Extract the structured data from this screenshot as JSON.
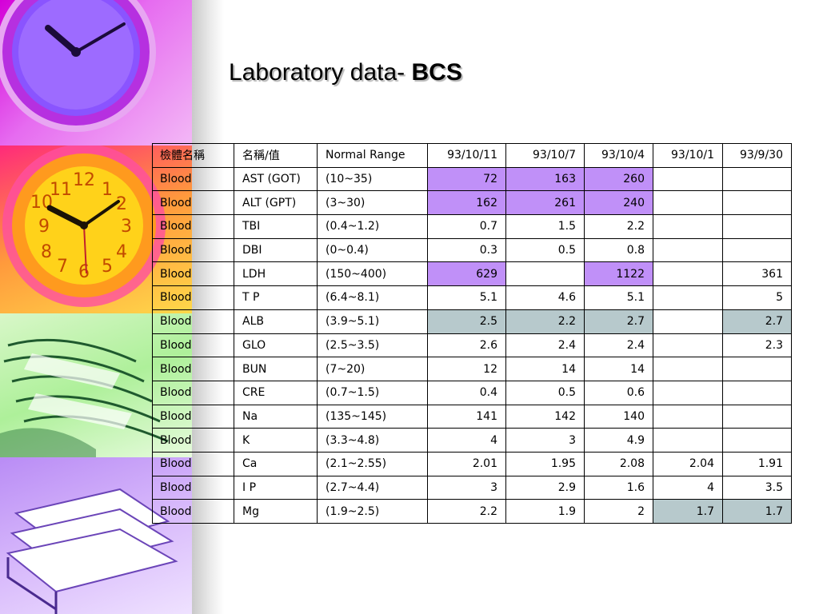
{
  "slide": {
    "title_prefix": "Laboratory data- ",
    "title_bold": "BCS"
  },
  "table": {
    "headers": [
      "檢體名稱",
      "名稱/值",
      "Normal Range",
      "93/10/11",
      "93/10/7",
      "93/10/4",
      "93/10/1",
      "93/9/30"
    ],
    "rows": [
      {
        "specimen": "Blood",
        "name": "AST (GOT)",
        "range": "(10~35)",
        "values": [
          "72",
          "163",
          "260",
          "",
          ""
        ],
        "flags": [
          "hi",
          "hi",
          "hi",
          "",
          ""
        ]
      },
      {
        "specimen": "Blood",
        "name": "ALT (GPT)",
        "range": "(3~30)",
        "values": [
          "162",
          "261",
          "240",
          "",
          ""
        ],
        "flags": [
          "hi",
          "hi",
          "hi",
          "",
          ""
        ]
      },
      {
        "specimen": "Blood",
        "name": "TBI",
        "range": "(0.4~1.2)",
        "values": [
          "0.7",
          "1.5",
          "2.2",
          "",
          ""
        ],
        "flags": [
          "",
          "",
          "",
          "",
          ""
        ]
      },
      {
        "specimen": "Blood",
        "name": "DBI",
        "range": "(0~0.4)",
        "values": [
          "0.3",
          "0.5",
          "0.8",
          "",
          ""
        ],
        "flags": [
          "",
          "",
          "",
          "",
          ""
        ]
      },
      {
        "specimen": "Blood",
        "name": "LDH",
        "range": "(150~400)",
        "values": [
          "629",
          "",
          "1122",
          "",
          "361"
        ],
        "flags": [
          "hi",
          "",
          "hi",
          "",
          ""
        ]
      },
      {
        "specimen": "Blood",
        "name": "T P",
        "range": "(6.4~8.1)",
        "values": [
          "5.1",
          "4.6",
          "5.1",
          "",
          "5"
        ],
        "flags": [
          "",
          "",
          "",
          "",
          ""
        ]
      },
      {
        "specimen": "Blood",
        "name": "ALB",
        "range": "(3.9~5.1)",
        "values": [
          "2.5",
          "2.2",
          "2.7",
          "",
          "2.7"
        ],
        "flags": [
          "lo",
          "lo",
          "lo",
          "",
          "lo"
        ]
      },
      {
        "specimen": "Blood",
        "name": "GLO",
        "range": "(2.5~3.5)",
        "values": [
          "2.6",
          "2.4",
          "2.4",
          "",
          "2.3"
        ],
        "flags": [
          "",
          "",
          "",
          "",
          ""
        ]
      },
      {
        "specimen": "Blood",
        "name": "BUN",
        "range": "(7~20)",
        "values": [
          "12",
          "14",
          "14",
          "",
          ""
        ],
        "flags": [
          "",
          "",
          "",
          "",
          ""
        ]
      },
      {
        "specimen": "Blood",
        "name": "CRE",
        "range": "(0.7~1.5)",
        "values": [
          "0.4",
          "0.5",
          "0.6",
          "",
          ""
        ],
        "flags": [
          "",
          "",
          "",
          "",
          ""
        ]
      },
      {
        "specimen": "Blood",
        "name": "Na",
        "range": "(135~145)",
        "values": [
          "141",
          "142",
          "140",
          "",
          ""
        ],
        "flags": [
          "",
          "",
          "",
          "",
          ""
        ]
      },
      {
        "specimen": "Blood",
        "name": "K",
        "range": "(3.3~4.8)",
        "values": [
          "4",
          "3",
          "4.9",
          "",
          ""
        ],
        "flags": [
          "",
          "",
          "",
          "",
          ""
        ]
      },
      {
        "specimen": "Blood",
        "name": "Ca",
        "range": "(2.1~2.55)",
        "values": [
          "2.01",
          "1.95",
          "2.08",
          "2.04",
          "1.91"
        ],
        "flags": [
          "",
          "",
          "",
          "",
          ""
        ]
      },
      {
        "specimen": "Blood",
        "name": "I P",
        "range": "(2.7~4.4)",
        "values": [
          "3",
          "2.9",
          "1.6",
          "4",
          "3.5"
        ],
        "flags": [
          "",
          "",
          "",
          "",
          ""
        ]
      },
      {
        "specimen": "Blood",
        "name": "Mg",
        "range": "(1.9~2.5)",
        "values": [
          "2.2",
          "1.9",
          "2",
          "1.7",
          "1.7"
        ],
        "flags": [
          "",
          "",
          "",
          "lo",
          "lo"
        ]
      }
    ]
  },
  "colors": {
    "high_highlight": "#c090f8",
    "low_highlight": "#b7c9cc"
  },
  "decor": {
    "icons": [
      "purple-clock-icon",
      "orange-clock-icon",
      "green-books-icon",
      "purple-books-icon"
    ]
  }
}
